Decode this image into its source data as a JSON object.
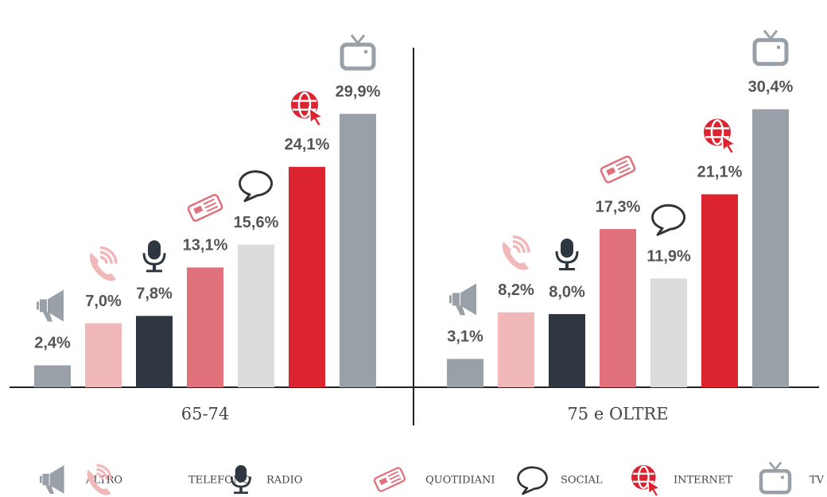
{
  "chart_data": {
    "type": "bar",
    "categories": [
      "65-74",
      "75 e OLTRE"
    ],
    "series": [
      {
        "name": "ALTRO",
        "color": "#9aa0a8",
        "values": [
          2.4,
          3.1
        ],
        "value_labels": [
          "2,4%",
          "3,1%"
        ]
      },
      {
        "name": "TELEFONO",
        "color": "#f0b8b8",
        "values": [
          7.0,
          8.2
        ],
        "value_labels": [
          "7,0%",
          "8,2%"
        ]
      },
      {
        "name": "RADIO",
        "color": "#2e3641",
        "values": [
          7.8,
          8.0
        ],
        "value_labels": [
          "7,8%",
          "8,0%"
        ]
      },
      {
        "name": "QUOTIDIANI",
        "color": "#e0707a",
        "values": [
          13.1,
          17.3
        ],
        "value_labels": [
          "13,1%",
          "17,3%"
        ]
      },
      {
        "name": "SOCIAL",
        "color": "#dcdcdc",
        "values": [
          15.6,
          11.9
        ],
        "value_labels": [
          "15,6%",
          "11,9%"
        ]
      },
      {
        "name": "INTERNET",
        "color": "#dc2430",
        "values": [
          24.1,
          21.1
        ],
        "value_labels": [
          "24,1%",
          "21,1%"
        ]
      },
      {
        "name": "TV",
        "color": "#9aa0a8",
        "values": [
          29.9,
          30.4
        ],
        "value_labels": [
          "29,9%",
          "30,4%"
        ]
      }
    ]
  }
}
